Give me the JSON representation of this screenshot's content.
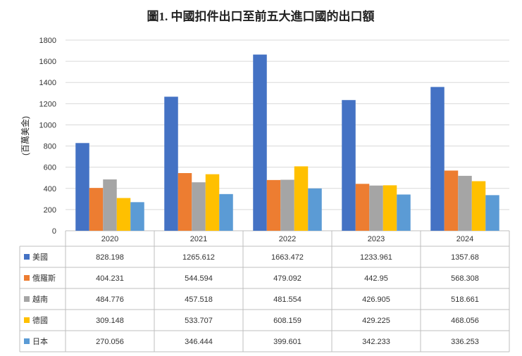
{
  "chart_data": {
    "type": "bar",
    "title": "圖1. 中國扣件出口至前五大進口國的出口額",
    "ylabel": "(百萬美金)",
    "xlabel": "",
    "ylim": [
      0,
      1800
    ],
    "yticks": [
      0,
      200,
      400,
      600,
      800,
      1000,
      1200,
      1400,
      1600,
      1800
    ],
    "grid": true,
    "categories": [
      "2020",
      "2021",
      "2022",
      "2023",
      "2024"
    ],
    "series": [
      {
        "name": "美國",
        "color": "#4472C4",
        "values": [
          828.198,
          1265.612,
          1663.472,
          1233.961,
          1357.68
        ],
        "labels": [
          "828.198",
          "1265.612",
          "1663.472",
          "1233.961",
          "1357.68"
        ]
      },
      {
        "name": "俄羅斯",
        "color": "#ED7D31",
        "values": [
          404.231,
          544.594,
          479.092,
          442.95,
          568.308
        ],
        "labels": [
          "404.231",
          "544.594",
          "479.092",
          "442.95",
          "568.308"
        ]
      },
      {
        "name": "越南",
        "color": "#A5A5A5",
        "values": [
          484.776,
          457.518,
          481.554,
          426.905,
          518.661
        ],
        "labels": [
          "484.776",
          "457.518",
          "481.554",
          "426.905",
          "518.661"
        ]
      },
      {
        "name": "德國",
        "color": "#FFC000",
        "values": [
          309.148,
          533.707,
          608.159,
          429.225,
          468.056
        ],
        "labels": [
          "309.148",
          "533.707",
          "608.159",
          "429.225",
          "468.056"
        ]
      },
      {
        "name": "日本",
        "color": "#5B9BD5",
        "values": [
          270.056,
          346.444,
          399.601,
          342.233,
          336.253
        ],
        "labels": [
          "270.056",
          "346.444",
          "399.601",
          "342.233",
          "336.253"
        ]
      }
    ],
    "legend": "data-table-bottom"
  }
}
